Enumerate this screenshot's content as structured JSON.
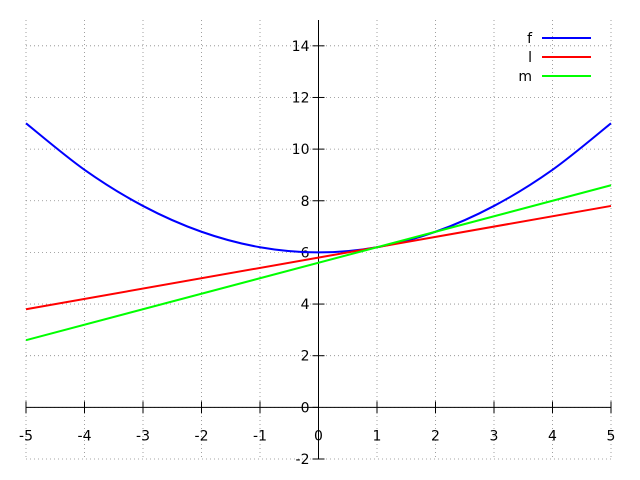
{
  "chart_data": {
    "type": "line",
    "xlim": [
      -5,
      5
    ],
    "ylim": [
      -2,
      15
    ],
    "x_ticks": [
      -5,
      -4,
      -3,
      -2,
      -1,
      0,
      1,
      2,
      3,
      4,
      5
    ],
    "y_ticks": [
      -2,
      0,
      2,
      4,
      6,
      8,
      10,
      12,
      14
    ],
    "grid": true,
    "legend_position": "top-right",
    "series": [
      {
        "name": "f",
        "color": "#0000ff",
        "x": [
          -5,
          -4,
          -3,
          -2,
          -1,
          0,
          1,
          2,
          3,
          4,
          5
        ],
        "y": [
          11,
          9.2,
          7.8,
          6.8,
          6.2,
          6,
          6.2,
          6.8,
          7.8,
          9.2,
          11
        ]
      },
      {
        "name": "l",
        "color": "#ff0000",
        "x": [
          -5,
          5
        ],
        "y": [
          3.8,
          7.8
        ]
      },
      {
        "name": "m",
        "color": "#00ff00",
        "x": [
          -5,
          5
        ],
        "y": [
          2.6,
          8.6
        ]
      }
    ]
  }
}
